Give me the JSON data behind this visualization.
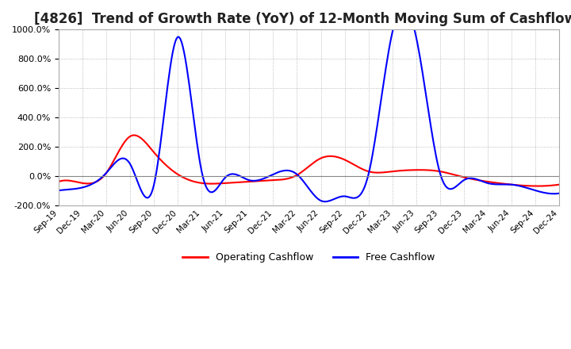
{
  "title": "[4826]  Trend of Growth Rate (YoY) of 12-Month Moving Sum of Cashflows",
  "title_fontsize": 12,
  "ylim": [
    -200,
    1000
  ],
  "yticks": [
    -200,
    0,
    200,
    400,
    600,
    800,
    1000
  ],
  "background_color": "#ffffff",
  "grid_color": "#aaaaaa",
  "legend_labels": [
    "Operating Cashflow",
    "Free Cashflow"
  ],
  "legend_colors": [
    "#ff0000",
    "#0000ff"
  ],
  "x_labels": [
    "Sep-19",
    "Dec-19",
    "Mar-20",
    "Jun-20",
    "Sep-20",
    "Dec-20",
    "Mar-21",
    "Jun-21",
    "Sep-21",
    "Dec-21",
    "Mar-22",
    "Jun-22",
    "Sep-22",
    "Dec-22",
    "Mar-23",
    "Jun-23",
    "Sep-23",
    "Dec-23",
    "Mar-24",
    "Jun-24",
    "Sep-24",
    "Dec-24"
  ],
  "operating_cashflow": [
    -40,
    -50,
    20,
    270,
    160,
    10,
    -50,
    -50,
    -40,
    -30,
    5,
    120,
    110,
    30,
    30,
    40,
    30,
    -10,
    -40,
    -60,
    -70,
    -60
  ],
  "free_cashflow": [
    -100,
    -80,
    20,
    80,
    -60,
    950,
    30,
    -10,
    -30,
    10,
    10,
    -170,
    -140,
    10,
    980,
    950,
    20,
    -30,
    -50,
    -60,
    -100,
    -120
  ]
}
